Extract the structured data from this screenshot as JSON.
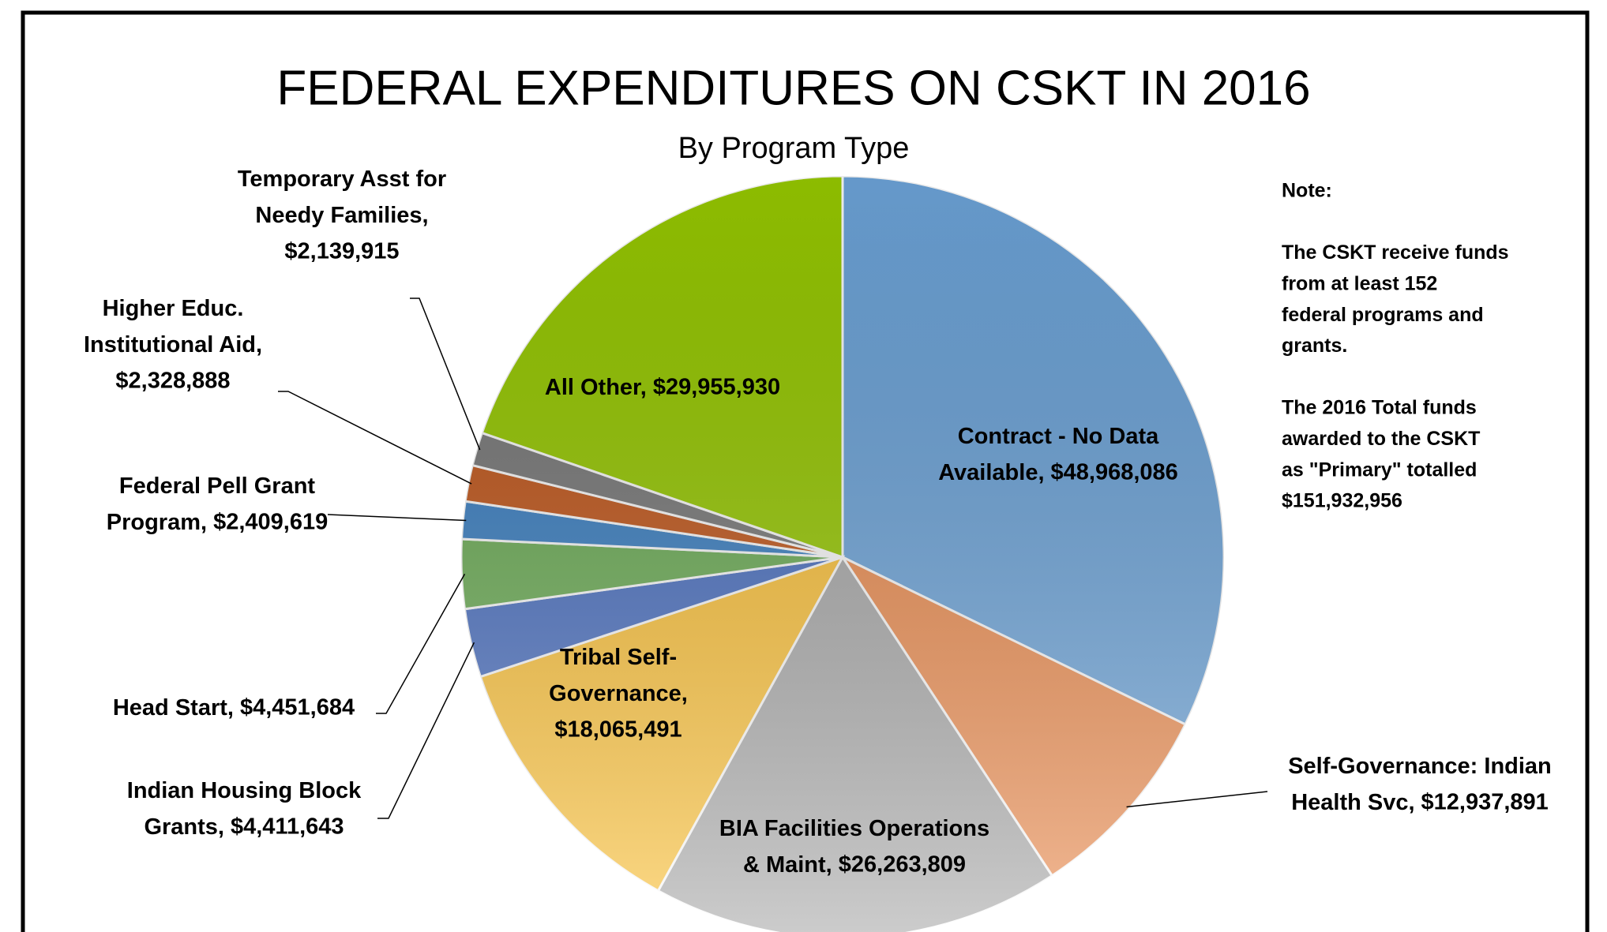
{
  "chart_data": {
    "type": "pie",
    "title": "FEDERAL EXPENDITURES ON CSKT IN 2016",
    "subtitle": "By Program Type",
    "categories": [
      "Contract - No Data Available,",
      "Self-Governance: Indian Health Svc,",
      "BIA Facilities Operations & Maint,",
      "Tribal Self-Governance,",
      "Indian Housing Block Grants,",
      "Head Start,",
      "Federal Pell Grant Program,",
      "Higher Educ. Institutional Aid,",
      "Temporary Asst for Needy Families,",
      "All Other,"
    ],
    "values": [
      48968086,
      12937891,
      26263809,
      18065491,
      4411643,
      4451684,
      2409619,
      2328888,
      2139915,
      29955930
    ],
    "value_labels": [
      "$48,968,086",
      "$12,937,891",
      "$26,263,809",
      "$18,065,491",
      "$4,411,643",
      "$4,451,684",
      "$2,409,619",
      "$2,328,888",
      "$2,139,915",
      "$29,955,930"
    ],
    "colors": [
      "#6ea6dc",
      "#ef8f52",
      "#ababab",
      "#ffc43a",
      "#4a70c2",
      "#6cae55",
      "#3a80c4",
      "#c4571a",
      "#7a7a7a",
      "#99cc00"
    ],
    "note": {
      "heading": "Note:",
      "paragraphs": [
        [
          "The CSKT receive funds",
          "from at least 152",
          "federal programs and",
          "grants."
        ],
        [
          "The 2016 Total  funds",
          "awarded to the CSKT",
          "as \"Primary\" totalled",
          "$151,932,956"
        ]
      ]
    }
  }
}
